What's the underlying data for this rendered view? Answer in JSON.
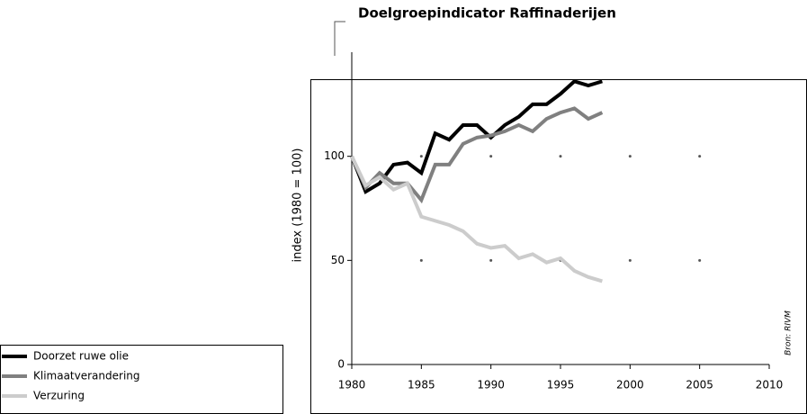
{
  "chart_data": {
    "type": "line",
    "title": "Doelgroepindicator Raffinaderijen",
    "y_label": "index (1980 = 100)",
    "source": "Bron: RIVM",
    "x": [
      1980,
      1981,
      1982,
      1983,
      1984,
      1985,
      1986,
      1987,
      1988,
      1989,
      1990,
      1991,
      1992,
      1993,
      1994,
      1995,
      1996,
      1997,
      1998
    ],
    "series": [
      {
        "name": "Doorzet ruwe olie",
        "color": "#000000",
        "values": [
          100,
          83,
          87,
          96,
          97,
          92,
          111,
          108,
          115,
          115,
          109,
          115,
          119,
          125,
          125,
          130,
          136,
          134,
          136
        ]
      },
      {
        "name": "Klimaatverandering",
        "color": "#808080",
        "values": [
          100,
          85,
          92,
          87,
          87,
          79,
          96,
          96,
          106,
          109,
          110,
          112,
          115,
          112,
          118,
          121,
          123,
          118,
          121
        ]
      },
      {
        "name": "Verzuring",
        "color": "#cccccc",
        "values": [
          100,
          86,
          90,
          84,
          87,
          71,
          69,
          67,
          64,
          58,
          56,
          57,
          51,
          53,
          49,
          51,
          45,
          42,
          40
        ]
      }
    ],
    "xlim": [
      1980,
      2010
    ],
    "xticks": [
      1980,
      1985,
      1990,
      1995,
      2000,
      2005,
      2010
    ],
    "ylim": [
      0,
      150
    ],
    "yticks": [
      0,
      50,
      100
    ],
    "grid": "dots"
  }
}
